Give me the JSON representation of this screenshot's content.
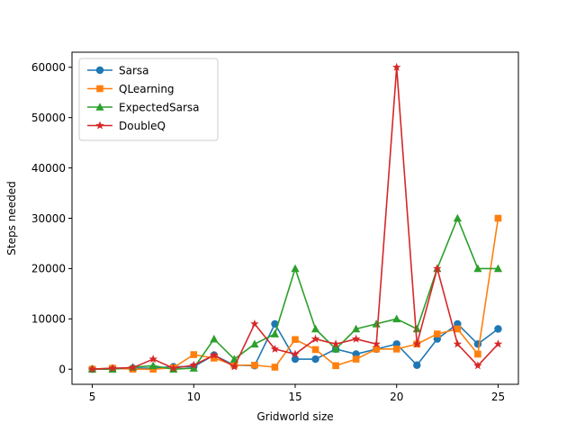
{
  "chart_data": {
    "type": "line",
    "title": "",
    "xlabel": "Gridworld size",
    "ylabel": "Steps needed",
    "xlim": [
      4.0,
      26.0
    ],
    "ylim": [
      -3000,
      63000
    ],
    "xticks": [
      5,
      10,
      15,
      20,
      25
    ],
    "xtick_labels": [
      "5",
      "10",
      "15",
      "20",
      "25"
    ],
    "yticks": [
      0,
      10000,
      20000,
      30000,
      40000,
      50000,
      60000
    ],
    "ytick_labels": [
      "0",
      "10000",
      "20000",
      "30000",
      "40000",
      "50000",
      "60000"
    ],
    "grid": false,
    "legend_position": "upper-left",
    "x": [
      5,
      6,
      7,
      8,
      9,
      10,
      11,
      12,
      13,
      14,
      15,
      16,
      17,
      18,
      19,
      20,
      21,
      22,
      23,
      24,
      25
    ],
    "series": [
      {
        "name": "Sarsa",
        "color": "#1f77b4",
        "marker": "circle",
        "values": [
          0,
          100,
          200,
          200,
          500,
          500,
          2800,
          800,
          700,
          9000,
          2000,
          2000,
          4000,
          3000,
          4000,
          5000,
          800,
          6000,
          9000,
          5000,
          8000
        ]
      },
      {
        "name": "QLearning",
        "color": "#ff7f0e",
        "marker": "square",
        "values": [
          0,
          200,
          0,
          0,
          300,
          2900,
          2200,
          800,
          800,
          400,
          5900,
          3900,
          700,
          2000,
          4000,
          4000,
          5000,
          7000,
          8000,
          3000,
          30000
        ]
      },
      {
        "name": "ExpectedSarsa",
        "color": "#2ca02c",
        "marker": "triangle",
        "values": [
          0,
          0,
          400,
          700,
          0,
          200,
          6000,
          2000,
          5000,
          7000,
          20000,
          8000,
          4000,
          8000,
          9000,
          10000,
          8000,
          20000,
          30000,
          20000,
          20000
        ]
      },
      {
        "name": "DoubleQ",
        "color": "#d62728",
        "marker": "star",
        "values": [
          0,
          200,
          300,
          2000,
          200,
          800,
          2800,
          500,
          9000,
          4000,
          3000,
          6000,
          5000,
          6000,
          5000,
          60000,
          5000,
          20000,
          5000,
          700,
          5000
        ]
      }
    ]
  }
}
